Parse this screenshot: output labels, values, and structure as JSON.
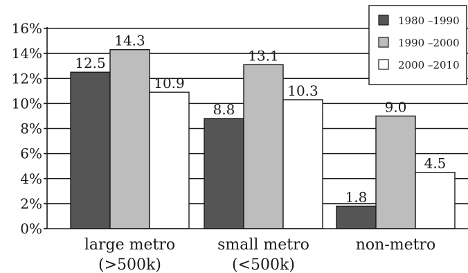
{
  "chart_data": {
    "type": "bar",
    "categories": [
      "large metro",
      "small metro",
      "non-metro"
    ],
    "category_sublabels": [
      "(>500k)",
      "(<500k)",
      ""
    ],
    "series": [
      {
        "name": "1980 –1990",
        "values": [
          12.5,
          8.8,
          1.8
        ],
        "color": "#555555"
      },
      {
        "name": "1990 –2000",
        "values": [
          14.3,
          13.1,
          9.0
        ],
        "color": "#bdbdbd"
      },
      {
        "name": "2000 –2010",
        "values": [
          10.9,
          10.3,
          4.5
        ],
        "color": "#ffffff"
      }
    ],
    "value_labels": [
      [
        "12.5",
        "8.8",
        "1.8"
      ],
      [
        "14.3",
        "13.1",
        "9.0"
      ],
      [
        "10.9",
        "10.3",
        "4.5"
      ]
    ],
    "ylim": [
      0,
      16
    ],
    "yticks": [
      0,
      2,
      4,
      6,
      8,
      10,
      12,
      14,
      16
    ],
    "ytick_labels": [
      "0%",
      "2%",
      "4%",
      "6%",
      "8%",
      "10%",
      "12%",
      "14%",
      "16%"
    ],
    "grid": true,
    "legend_position": "top-right",
    "title": "",
    "xlabel": "",
    "ylabel": ""
  }
}
